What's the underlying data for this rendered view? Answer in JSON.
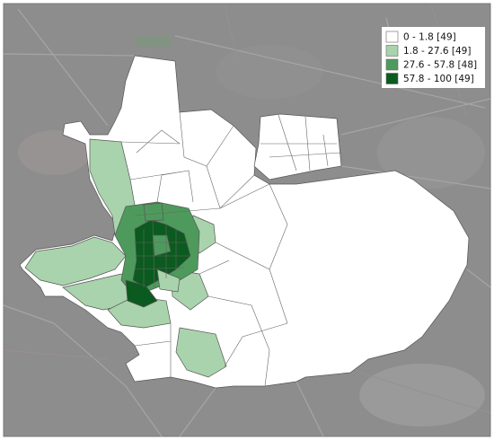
{
  "legend": {
    "entries": [
      {
        "label": "0 - 1.8 [49]",
        "color": "#ffffff"
      },
      {
        "label": "1.8 - 27.6 [49]",
        "color": "#a9d3ac"
      },
      {
        "label": "27.6 - 57.8 [48]",
        "color": "#4e9a5d"
      },
      {
        "label": "57.8 - 100 [49]",
        "color": "#0b5a1f"
      }
    ]
  }
}
